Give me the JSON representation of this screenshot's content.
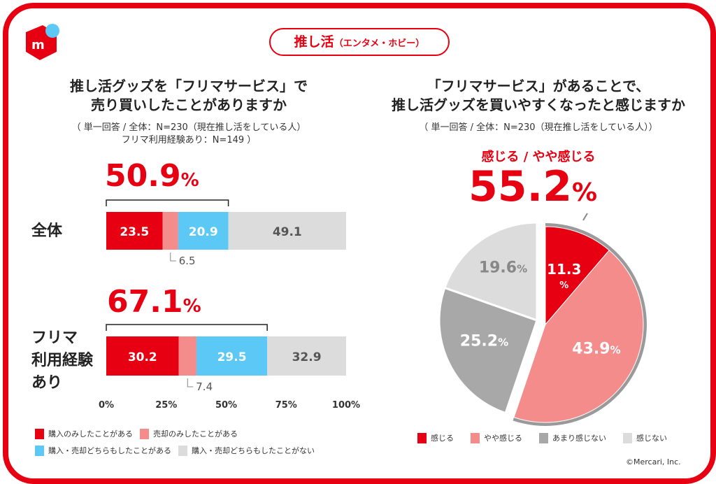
{
  "badge": {
    "main": "推し活",
    "sub": "（エンタメ・ホビー）"
  },
  "logo_text": "m",
  "left": {
    "title_lines": [
      "推し活グッズを「フリマサービス」で",
      "売り買いしたことがありますか"
    ],
    "note_lines": [
      "（ 単一回答 / 全体：N=230（現在推し活をしている人）",
      "フリマ利用経験あり：N=149 ）"
    ],
    "highlights": [
      {
        "value": "50.9",
        "unit": "%"
      },
      {
        "value": "67.1",
        "unit": "%"
      }
    ]
  },
  "right": {
    "title_lines": [
      "「フリマサービス」があることで、",
      "推し活グッズを買いやすくなったと感じますか"
    ],
    "note": "（ 単一回答 / 全体：N=230（現在推し活をしている人））",
    "highlight_label": "感じる / やや感じる",
    "highlight": {
      "value": "55.2",
      "unit": "%"
    }
  },
  "copyright": "©Mercari, Inc.",
  "chart_data": [
    {
      "type": "bar",
      "orientation": "horizontal",
      "stacked": true,
      "categories": [
        "全体",
        "フリマ利用経験あり"
      ],
      "category_lines": [
        [
          "全体"
        ],
        [
          "フリマ",
          "利用経験",
          "あり"
        ]
      ],
      "series": [
        {
          "name": "購入のみしたことがある",
          "color": "#e60012",
          "values": [
            23.5,
            30.2
          ]
        },
        {
          "name": "売却のみしたことがある",
          "color": "#f58c8c",
          "values": [
            6.5,
            7.4
          ]
        },
        {
          "name": "購入・売却どちらもしたことがある",
          "color": "#5bc8f5",
          "values": [
            20.9,
            29.5
          ]
        },
        {
          "name": "購入・売却どちらもしたことがない",
          "color": "#dcdcdc",
          "values": [
            49.1,
            32.9
          ]
        }
      ],
      "xlim": [
        0,
        100
      ],
      "xticks": [
        "0%",
        "25%",
        "50%",
        "75%",
        "100%"
      ],
      "legend": "bottom"
    },
    {
      "type": "pie",
      "slices": [
        {
          "name": "感じる",
          "value": 11.3,
          "color": "#e60012",
          "label": "11.3"
        },
        {
          "name": "やや感じる",
          "value": 43.9,
          "color": "#f58c8c",
          "label": "43.9"
        },
        {
          "name": "あまり感じない",
          "value": 25.2,
          "color": "#a8a8a8",
          "label": "25.2"
        },
        {
          "name": "感じない",
          "value": 19.6,
          "color": "#dcdcdc",
          "label": "19.6"
        }
      ],
      "unit": "%",
      "legend": "bottom"
    }
  ]
}
